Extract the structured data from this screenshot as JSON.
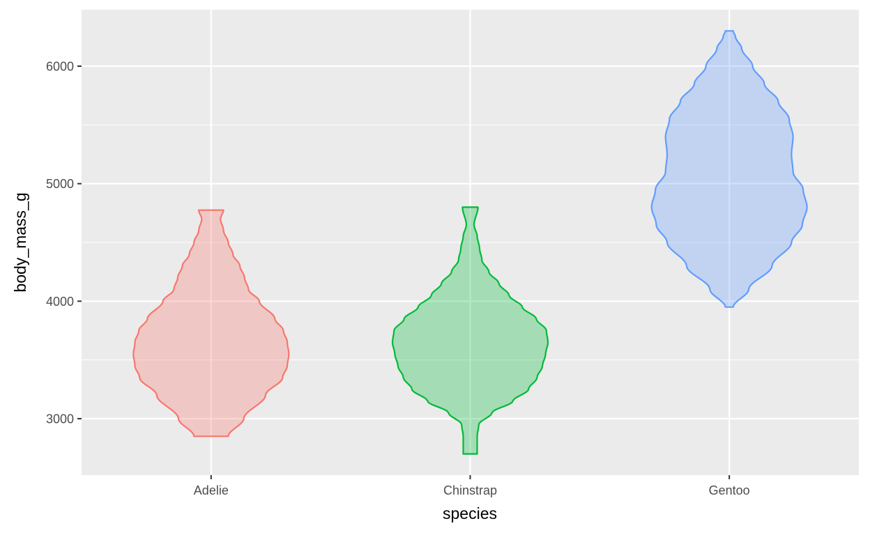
{
  "chart_data": {
    "type": "violin",
    "xlabel": "species",
    "ylabel": "body_mass_g",
    "categories": [
      "Adelie",
      "Chinstrap",
      "Gentoo"
    ],
    "yticks": [
      3000,
      4000,
      5000,
      6000
    ],
    "ytick_labels": [
      "3000",
      "4000",
      "5000",
      "6000"
    ],
    "ylim": [
      2520,
      6480
    ],
    "grid": true,
    "colors": {
      "panel_background": "#EBEBEB",
      "grid": "#FFFFFF",
      "Adelie": "#F8766D",
      "Chinstrap": "#00BA38",
      "Gentoo": "#619CFF"
    },
    "series": [
      {
        "category": "Adelie",
        "range": [
          2850,
          4775
        ],
        "profile": [
          [
            2850,
            0.22
          ],
          [
            3000,
            0.42
          ],
          [
            3200,
            0.7
          ],
          [
            3350,
            0.92
          ],
          [
            3450,
            0.98
          ],
          [
            3550,
            1.0
          ],
          [
            3650,
            0.98
          ],
          [
            3750,
            0.93
          ],
          [
            3850,
            0.82
          ],
          [
            4000,
            0.62
          ],
          [
            4100,
            0.48
          ],
          [
            4200,
            0.43
          ],
          [
            4300,
            0.37
          ],
          [
            4400,
            0.28
          ],
          [
            4500,
            0.22
          ],
          [
            4600,
            0.16
          ],
          [
            4700,
            0.12
          ],
          [
            4775,
            0.16
          ]
        ]
      },
      {
        "category": "Chinstrap",
        "range": [
          2700,
          4800
        ],
        "profile": [
          [
            2700,
            0.09
          ],
          [
            2850,
            0.09
          ],
          [
            2950,
            0.11
          ],
          [
            3050,
            0.28
          ],
          [
            3150,
            0.55
          ],
          [
            3250,
            0.75
          ],
          [
            3350,
            0.86
          ],
          [
            3450,
            0.93
          ],
          [
            3550,
            0.97
          ],
          [
            3650,
            1.0
          ],
          [
            3750,
            0.98
          ],
          [
            3850,
            0.85
          ],
          [
            3950,
            0.67
          ],
          [
            4050,
            0.5
          ],
          [
            4150,
            0.37
          ],
          [
            4250,
            0.24
          ],
          [
            4350,
            0.15
          ],
          [
            4450,
            0.12
          ],
          [
            4550,
            0.09
          ],
          [
            4650,
            0.05
          ],
          [
            4800,
            0.1
          ]
        ]
      },
      {
        "category": "Gentoo",
        "range": [
          3950,
          6300
        ],
        "profile": [
          [
            3950,
            0.05
          ],
          [
            4100,
            0.25
          ],
          [
            4300,
            0.55
          ],
          [
            4500,
            0.8
          ],
          [
            4650,
            0.94
          ],
          [
            4800,
            1.0
          ],
          [
            4950,
            0.95
          ],
          [
            5100,
            0.82
          ],
          [
            5250,
            0.8
          ],
          [
            5400,
            0.82
          ],
          [
            5550,
            0.77
          ],
          [
            5700,
            0.63
          ],
          [
            5850,
            0.45
          ],
          [
            6000,
            0.3
          ],
          [
            6150,
            0.16
          ],
          [
            6250,
            0.08
          ],
          [
            6300,
            0.05
          ]
        ]
      }
    ]
  }
}
